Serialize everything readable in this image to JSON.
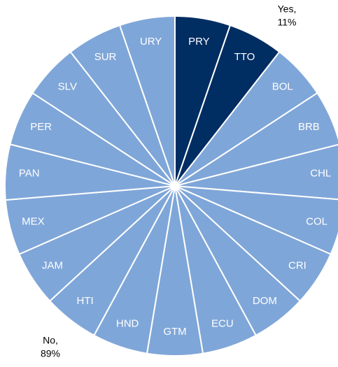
{
  "chart_data": {
    "type": "pie",
    "categories": [
      "PRY",
      "TTO",
      "BOL",
      "BRB",
      "CHL",
      "COL",
      "CRI",
      "DOM",
      "ECU",
      "GTM",
      "HND",
      "HTI",
      "JAM",
      "MEX",
      "PAN",
      "PER",
      "SLV",
      "SUR",
      "URY"
    ],
    "values": [
      5.26,
      5.26,
      5.26,
      5.26,
      5.26,
      5.26,
      5.26,
      5.26,
      5.26,
      5.26,
      5.26,
      5.26,
      5.26,
      5.26,
      5.26,
      5.26,
      5.26,
      5.26,
      5.26
    ],
    "colors": [
      "#002d62",
      "#002d62",
      "#7fa6d8",
      "#7fa6d8",
      "#7fa6d8",
      "#7fa6d8",
      "#7fa6d8",
      "#7fa6d8",
      "#7fa6d8",
      "#7fa6d8",
      "#7fa6d8",
      "#7fa6d8",
      "#7fa6d8",
      "#7fa6d8",
      "#7fa6d8",
      "#7fa6d8",
      "#7fa6d8",
      "#7fa6d8",
      "#7fa6d8"
    ],
    "groups": [
      {
        "label": "Yes,",
        "value": 11,
        "value_label": "11%"
      },
      {
        "label": "No,",
        "value": 89,
        "value_label": "89%"
      }
    ]
  }
}
